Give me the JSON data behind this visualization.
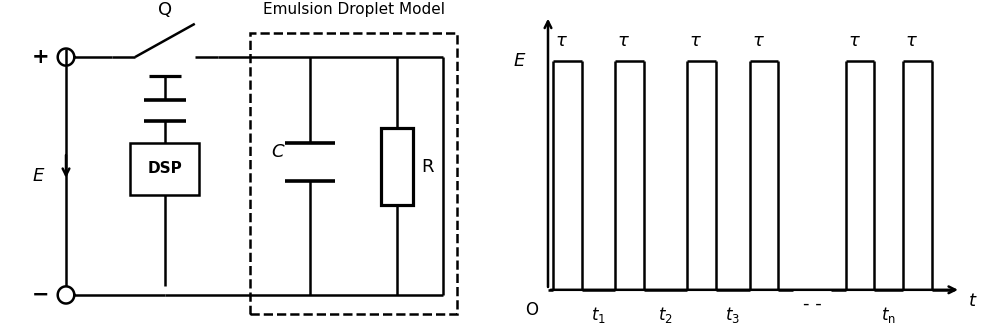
{
  "background_color": "#ffffff",
  "line_color": "#000000",
  "line_width": 1.8,
  "circuit": {
    "title": "Emulsion Droplet Model",
    "plus_label": "+",
    "minus_label": "−",
    "E_label": "E",
    "Q_label": "Q",
    "C_label": "C",
    "R_label": "R",
    "DSP_label": "DSP"
  },
  "pulse": {
    "tau_label": "$\\tau$",
    "E_label": "$E$",
    "O_label": "O",
    "t_axis_label": "$t$",
    "t_labels": [
      "$t_1$",
      "$t_2$",
      "$t_3$",
      "$t_{\\mathrm{n}}$"
    ],
    "dash_str": "- -"
  }
}
